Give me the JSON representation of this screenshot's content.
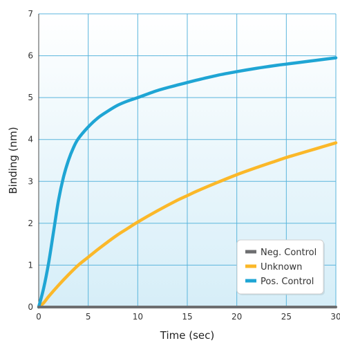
{
  "chart_data": {
    "type": "line",
    "xlabel": "Time (sec)",
    "ylabel": "Binding (nm)",
    "xlim": [
      0,
      30
    ],
    "ylim": [
      0,
      7
    ],
    "x_ticks": [
      "0",
      "5",
      "10",
      "15",
      "20",
      "25",
      "30"
    ],
    "y_ticks": [
      "0",
      "1",
      "2",
      "3",
      "4",
      "5",
      "6",
      "7"
    ],
    "grid": true,
    "legend_position": "bottom-right",
    "series": [
      {
        "name": "Neg. Control",
        "color": "#6d6e70",
        "x": [
          0,
          30
        ],
        "y": [
          0,
          0
        ]
      },
      {
        "name": "Unknown",
        "color": "#fbb829",
        "x": [
          0,
          0.5,
          1,
          2,
          3,
          4,
          5,
          6,
          7,
          8,
          9,
          10,
          12,
          14,
          15,
          16,
          18,
          20,
          22,
          24,
          25,
          26,
          28,
          30
        ],
        "y": [
          0,
          0.1,
          0.25,
          0.52,
          0.77,
          1.0,
          1.19,
          1.38,
          1.56,
          1.73,
          1.88,
          2.03,
          2.3,
          2.55,
          2.66,
          2.77,
          2.97,
          3.16,
          3.33,
          3.49,
          3.57,
          3.64,
          3.78,
          3.92
        ]
      },
      {
        "name": "Pos. Control",
        "color": "#1fa5d4",
        "x": [
          0,
          0.5,
          1,
          1.5,
          2,
          2.5,
          3,
          3.5,
          4,
          5,
          6,
          7,
          8,
          9,
          10,
          12,
          14,
          15,
          16,
          18,
          20,
          22,
          24,
          25,
          26,
          28,
          30
        ],
        "y": [
          0,
          0.45,
          1.05,
          1.8,
          2.55,
          3.1,
          3.5,
          3.8,
          4.02,
          4.3,
          4.52,
          4.68,
          4.82,
          4.92,
          5.0,
          5.17,
          5.3,
          5.36,
          5.42,
          5.53,
          5.62,
          5.7,
          5.77,
          5.8,
          5.83,
          5.89,
          5.95
        ]
      }
    ]
  }
}
